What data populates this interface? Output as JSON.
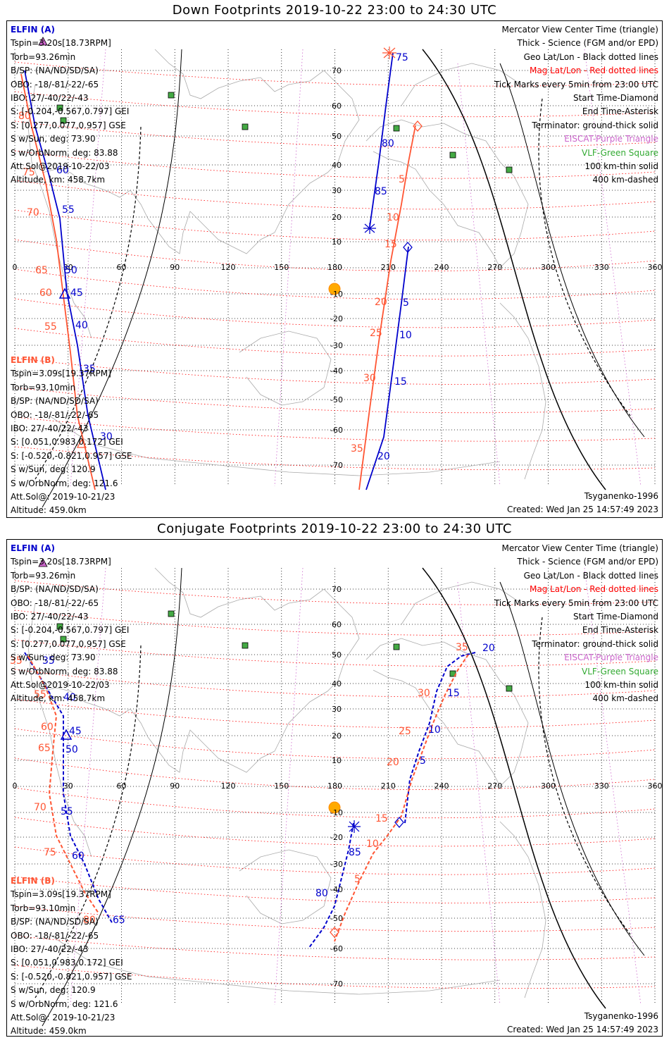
{
  "panels": [
    {
      "title": "Down Footprints 2019-10-22 23:00 to 24:30 UTC",
      "mode": "down",
      "sat_a": {
        "name": "ELFIN (A)",
        "lines": [
          "Tspin=3.20s[18.73RPM]",
          "Torb=93.26min",
          "B/SP: (NA/ND/SD/SA)",
          "OBO: -18/-81/-22/-65",
          "IBO: 27/-40/22/-43",
          "S: [-0.204,-0.567,0.797] GEI",
          "S: [0.277,0.077,0.957] GSE",
          "S w/Sun, deg: 73.90",
          "S w/OrbNorm, deg: 83.88",
          "Att.Sol@2019-10-22/03",
          "Altitude, km: 458.7km"
        ]
      },
      "sat_b": {
        "name": "ELFIN (B)",
        "lines": [
          "Tspin=3.09s[19.37RPM]",
          "Torb=93.10min",
          "B/SP: (NA/ND/SD/SA)",
          "OBO: -18/-81/-22/-65",
          "IBO: 27/-40/22/-43",
          "S: [0.051,0.983,0.172] GEI",
          "S: [-0.520,-0.821,0.957] GSE",
          "S w/Sun, deg: 120.9",
          "S w/OrbNorm, deg: 121.6",
          "Att.Sol@: 2019-10-21/23",
          "Altitude: 459.0km"
        ]
      },
      "legend": [
        {
          "text": "Mercator View Center Time (triangle)",
          "color": "#000000"
        },
        {
          "text": "Thick - Science (FGM and/or EPD)",
          "color": "#000000"
        },
        {
          "text": "Geo Lat/Lon - Black dotted lines",
          "color": "#000000"
        },
        {
          "text": "Mag Lat/Lon - Red dotted lines",
          "color": "#ff0000"
        },
        {
          "text": "Tick Marks every 5min from 23:00 UTC",
          "color": "#000000"
        },
        {
          "text": "Start Time-Diamond",
          "color": "#000000"
        },
        {
          "text": "End Time-Asterisk",
          "color": "#000000"
        },
        {
          "text": "Terminator: ground-thick solid",
          "color": "#000000"
        },
        {
          "text": "EISCAT-Purple Triangle",
          "color": "#cc66cc"
        },
        {
          "text": "VLF-Green Square",
          "color": "#33aa33"
        },
        {
          "text": "100 km-thin solid",
          "color": "#000000"
        },
        {
          "text": "400 km-dashed",
          "color": "#000000"
        }
      ],
      "footer_model": "Tsyganenko-1996",
      "footer_created": "Created: Wed Jan 25 14:57:49 2023",
      "track_a_labels": [
        "75",
        "80",
        "85",
        "5",
        "10",
        "15",
        "20",
        "60",
        "55",
        "50",
        "45",
        "40",
        "35",
        "30"
      ],
      "track_b_labels": [
        "5",
        "10",
        "15",
        "20",
        "25",
        "30",
        "35",
        "80",
        "75",
        "70",
        "65",
        "60",
        "55"
      ]
    },
    {
      "title": "Conjugate Footprints 2019-10-22 23:00 to 24:30 UTC",
      "mode": "conj",
      "sat_a": {
        "name": "ELFIN (A)",
        "lines": [
          "Tspin=3.20s[18.73RPM]",
          "Torb=93.26min",
          "B/SP: (NA/ND/SD/SA)",
          "OBO: -18/-81/-22/-65",
          "IBO: 27/-40/22/-43",
          "S: [-0.204,-0.567,0.797] GEI",
          "S: [0.277,0.077,0.957] GSE",
          "S w/Sun, deg: 73.90",
          "S w/OrbNorm, deg: 83.88",
          "Att.Sol@2019-10-22/03",
          "Altitude, km: 458.7km"
        ]
      },
      "sat_b": {
        "name": "ELFIN (B)",
        "lines": [
          "Tspin=3.09s[19.37RPM]",
          "Torb=93.10min",
          "B/SP: (NA/ND/SD/SA)",
          "OBO: -18/-81/-22/-65",
          "IBO: 27/-40/22/-43",
          "S: [0.051,0.983,0.172] GEI",
          "S: [-0.520,-0.821,0.957] GSE",
          "S w/Sun, deg: 120.9",
          "S w/OrbNorm, deg: 121.6",
          "Att.Sol@: 2019-10-21/23",
          "Altitude: 459.0km"
        ]
      },
      "legend": [
        {
          "text": "Mercator View Center Time (triangle)",
          "color": "#000000"
        },
        {
          "text": "Thick - Science (FGM and/or EPD)",
          "color": "#000000"
        },
        {
          "text": "Geo Lat/Lon - Black dotted lines",
          "color": "#000000"
        },
        {
          "text": "Mag Lat/Lon - Red dotted lines",
          "color": "#ff0000"
        },
        {
          "text": "Tick Marks every 5min from 23:00 UTC",
          "color": "#000000"
        },
        {
          "text": "Start Time-Diamond",
          "color": "#000000"
        },
        {
          "text": "End Time-Asterisk",
          "color": "#000000"
        },
        {
          "text": "Terminator: ground-thick solid",
          "color": "#000000"
        },
        {
          "text": "EISCAT-Purple Triangle",
          "color": "#cc66cc"
        },
        {
          "text": "VLF-Green Square",
          "color": "#33aa33"
        },
        {
          "text": "100 km-thin solid",
          "color": "#000000"
        },
        {
          "text": "400 km-dashed",
          "color": "#000000"
        }
      ],
      "footer_model": "Tsyganenko-1996",
      "footer_created": "Created: Wed Jan 25 14:57:49 2023",
      "track_a_labels": [
        "35",
        "40",
        "45",
        "50",
        "55",
        "60",
        "65",
        "85",
        "80",
        "5",
        "10",
        "15",
        "20"
      ],
      "track_b_labels": [
        "35",
        "55",
        "60",
        "65",
        "70",
        "75",
        "80",
        "5",
        "10",
        "15",
        "20",
        "25",
        "30",
        "35"
      ]
    }
  ],
  "grid": {
    "lon_labels": [
      "0",
      "30",
      "60",
      "90",
      "120",
      "150",
      "180",
      "210",
      "240",
      "270",
      "300",
      "330",
      "360"
    ],
    "lat_labels": [
      "70",
      "60",
      "50",
      "40",
      "30",
      "20",
      "10",
      "-10",
      "-20",
      "-30",
      "-40",
      "-50",
      "-60",
      "-70"
    ]
  },
  "colors": {
    "sat_a": "#0000cc",
    "sat_b": "#ff5533",
    "mag_grid": "#ff0000",
    "geo_grid": "#000000",
    "eiscat": "#cc66cc",
    "vlf": "#33aa33",
    "sun": "#ffaa00"
  }
}
